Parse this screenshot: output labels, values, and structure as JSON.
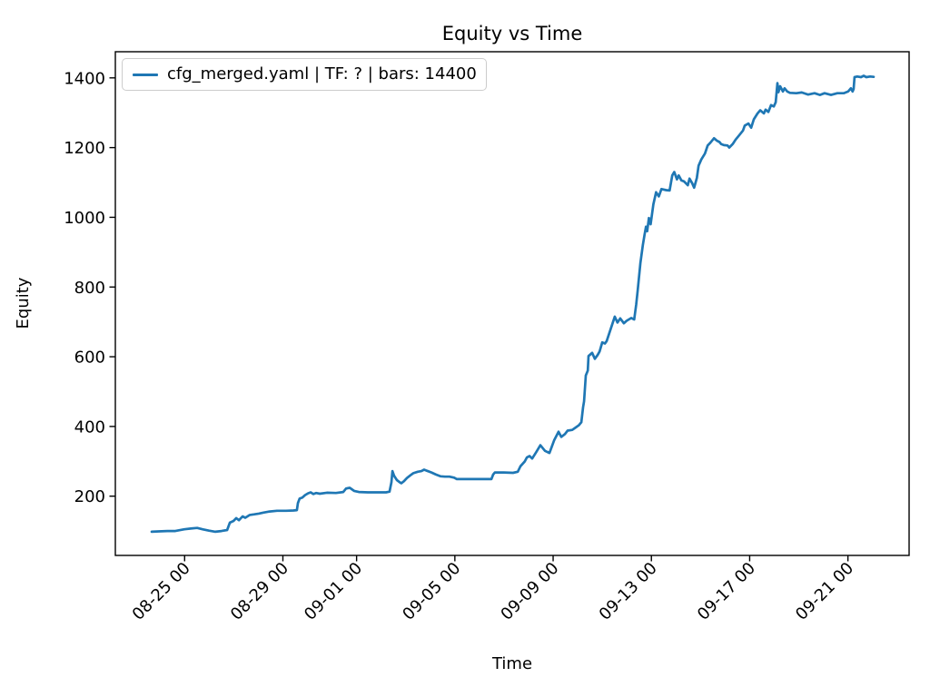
{
  "figure": {
    "title": "Equity vs Time",
    "x_label": "Time",
    "y_label": "Equity"
  },
  "legend": {
    "entries": [
      {
        "label": "cfg_merged.yaml | TF: ? | bars: 14400",
        "color": "#1f77b4"
      }
    ]
  },
  "chart_data": {
    "type": "line",
    "title": "Equity vs Time",
    "xlabel": "Time",
    "ylabel": "Equity",
    "grid": false,
    "legend_position": "upper left",
    "x_axis": {
      "unit": "day offset from 08-23 00:00",
      "xlim": [
        -0.82,
        31.49
      ],
      "ticks": [
        {
          "label": "08-25 00",
          "d": 2
        },
        {
          "label": "08-29 00",
          "d": 6
        },
        {
          "label": "09-01 00",
          "d": 9
        },
        {
          "label": "09-05 00",
          "d": 13
        },
        {
          "label": "09-09 00",
          "d": 17
        },
        {
          "label": "09-13 00",
          "d": 21
        },
        {
          "label": "09-17 00",
          "d": 25
        },
        {
          "label": "09-21 00",
          "d": 29
        }
      ]
    },
    "y_axis": {
      "ylim": [
        30,
        1475
      ],
      "ticks": [
        200,
        400,
        600,
        800,
        1000,
        1200,
        1400
      ]
    },
    "series": [
      {
        "name": "cfg_merged.yaml | TF: ? | bars: 14400",
        "color": "#1f77b4",
        "line_width": 2.7,
        "points": [
          [
            0.66,
            98
          ],
          [
            0.95,
            99
          ],
          [
            1.3,
            100
          ],
          [
            1.62,
            100
          ],
          [
            1.99,
            105
          ],
          [
            2.25,
            107
          ],
          [
            2.51,
            109
          ],
          [
            2.73,
            105
          ],
          [
            2.99,
            101
          ],
          [
            3.25,
            98
          ],
          [
            3.5,
            100
          ],
          [
            3.73,
            103
          ],
          [
            3.84,
            124
          ],
          [
            3.99,
            129
          ],
          [
            4.1,
            137
          ],
          [
            4.21,
            131
          ],
          [
            4.36,
            142
          ],
          [
            4.47,
            138
          ],
          [
            4.65,
            146
          ],
          [
            4.84,
            148
          ],
          [
            5.02,
            150
          ],
          [
            5.21,
            153
          ],
          [
            5.46,
            156
          ],
          [
            5.76,
            158
          ],
          [
            6.13,
            158
          ],
          [
            6.43,
            159
          ],
          [
            6.57,
            160
          ],
          [
            6.61,
            180
          ],
          [
            6.68,
            193
          ],
          [
            6.79,
            196
          ],
          [
            6.9,
            203
          ],
          [
            7.02,
            208
          ],
          [
            7.13,
            211
          ],
          [
            7.24,
            206
          ],
          [
            7.35,
            209
          ],
          [
            7.5,
            207
          ],
          [
            7.79,
            210
          ],
          [
            8.16,
            209
          ],
          [
            8.46,
            212
          ],
          [
            8.57,
            222
          ],
          [
            8.72,
            224
          ],
          [
            8.9,
            215
          ],
          [
            9.09,
            212
          ],
          [
            9.46,
            211
          ],
          [
            9.83,
            211
          ],
          [
            10.2,
            211
          ],
          [
            10.34,
            213
          ],
          [
            10.42,
            240
          ],
          [
            10.46,
            272
          ],
          [
            10.53,
            258
          ],
          [
            10.64,
            246
          ],
          [
            10.75,
            240
          ],
          [
            10.82,
            237
          ],
          [
            10.93,
            243
          ],
          [
            11.05,
            252
          ],
          [
            11.19,
            260
          ],
          [
            11.31,
            266
          ],
          [
            11.49,
            270
          ],
          [
            11.64,
            272
          ],
          [
            11.75,
            276
          ],
          [
            11.86,
            273
          ],
          [
            12.05,
            268
          ],
          [
            12.23,
            262
          ],
          [
            12.41,
            257
          ],
          [
            12.6,
            256
          ],
          [
            12.78,
            256
          ],
          [
            12.97,
            253
          ],
          [
            13.08,
            249
          ],
          [
            13.52,
            249
          ],
          [
            14.08,
            249
          ],
          [
            14.49,
            249
          ],
          [
            14.56,
            262
          ],
          [
            14.63,
            268
          ],
          [
            15.0,
            268
          ],
          [
            15.37,
            267
          ],
          [
            15.56,
            270
          ],
          [
            15.67,
            286
          ],
          [
            15.85,
            300
          ],
          [
            15.93,
            311
          ],
          [
            16.04,
            315
          ],
          [
            16.15,
            308
          ],
          [
            16.3,
            325
          ],
          [
            16.48,
            346
          ],
          [
            16.67,
            330
          ],
          [
            16.85,
            324
          ],
          [
            17.04,
            360
          ],
          [
            17.22,
            385
          ],
          [
            17.33,
            370
          ],
          [
            17.48,
            378
          ],
          [
            17.59,
            388
          ],
          [
            17.78,
            390
          ],
          [
            18.04,
            403
          ],
          [
            18.15,
            412
          ],
          [
            18.22,
            455
          ],
          [
            18.26,
            472
          ],
          [
            18.33,
            546
          ],
          [
            18.41,
            560
          ],
          [
            18.44,
            602
          ],
          [
            18.59,
            611
          ],
          [
            18.7,
            594
          ],
          [
            18.81,
            605
          ],
          [
            18.89,
            615
          ],
          [
            19.0,
            641
          ],
          [
            19.11,
            638
          ],
          [
            19.18,
            645
          ],
          [
            19.37,
            685
          ],
          [
            19.51,
            715
          ],
          [
            19.62,
            698
          ],
          [
            19.73,
            710
          ],
          [
            19.88,
            696
          ],
          [
            19.99,
            703
          ],
          [
            20.18,
            711
          ],
          [
            20.3,
            707
          ],
          [
            20.38,
            750
          ],
          [
            20.44,
            789
          ],
          [
            20.55,
            868
          ],
          [
            20.65,
            920
          ],
          [
            20.72,
            950
          ],
          [
            20.78,
            973
          ],
          [
            20.83,
            960
          ],
          [
            20.9,
            998
          ],
          [
            20.97,
            980
          ],
          [
            21.08,
            1037
          ],
          [
            21.19,
            1072
          ],
          [
            21.3,
            1060
          ],
          [
            21.41,
            1081
          ],
          [
            21.6,
            1078
          ],
          [
            21.74,
            1077
          ],
          [
            21.85,
            1120
          ],
          [
            21.93,
            1130
          ],
          [
            22.04,
            1109
          ],
          [
            22.11,
            1120
          ],
          [
            22.22,
            1106
          ],
          [
            22.33,
            1103
          ],
          [
            22.48,
            1092
          ],
          [
            22.55,
            1111
          ],
          [
            22.66,
            1098
          ],
          [
            22.74,
            1085
          ],
          [
            22.85,
            1113
          ],
          [
            22.92,
            1148
          ],
          [
            23.03,
            1166
          ],
          [
            23.18,
            1183
          ],
          [
            23.29,
            1206
          ],
          [
            23.4,
            1214
          ],
          [
            23.55,
            1227
          ],
          [
            23.66,
            1220
          ],
          [
            23.77,
            1216
          ],
          [
            23.84,
            1210
          ],
          [
            23.95,
            1207
          ],
          [
            24.1,
            1206
          ],
          [
            24.17,
            1200
          ],
          [
            24.32,
            1211
          ],
          [
            24.43,
            1223
          ],
          [
            24.58,
            1236
          ],
          [
            24.73,
            1249
          ],
          [
            24.8,
            1263
          ],
          [
            24.95,
            1269
          ],
          [
            25.06,
            1257
          ],
          [
            25.17,
            1281
          ],
          [
            25.32,
            1298
          ],
          [
            25.43,
            1307
          ],
          [
            25.58,
            1298
          ],
          [
            25.65,
            1309
          ],
          [
            25.76,
            1302
          ],
          [
            25.87,
            1322
          ],
          [
            25.98,
            1318
          ],
          [
            26.06,
            1330
          ],
          [
            26.13,
            1385
          ],
          [
            26.17,
            1359
          ],
          [
            26.24,
            1376
          ],
          [
            26.35,
            1361
          ],
          [
            26.42,
            1370
          ],
          [
            26.53,
            1361
          ],
          [
            26.64,
            1357
          ],
          [
            26.9,
            1356
          ],
          [
            27.12,
            1358
          ],
          [
            27.38,
            1352
          ],
          [
            27.64,
            1356
          ],
          [
            27.86,
            1351
          ],
          [
            28.05,
            1356
          ],
          [
            28.31,
            1351
          ],
          [
            28.57,
            1356
          ],
          [
            28.83,
            1356
          ],
          [
            29.01,
            1361
          ],
          [
            29.12,
            1370
          ],
          [
            29.19,
            1361
          ],
          [
            29.23,
            1368
          ],
          [
            29.27,
            1402
          ],
          [
            29.38,
            1404
          ],
          [
            29.53,
            1402
          ],
          [
            29.64,
            1406
          ],
          [
            29.75,
            1402
          ],
          [
            29.9,
            1404
          ],
          [
            30.05,
            1403
          ]
        ]
      }
    ]
  }
}
